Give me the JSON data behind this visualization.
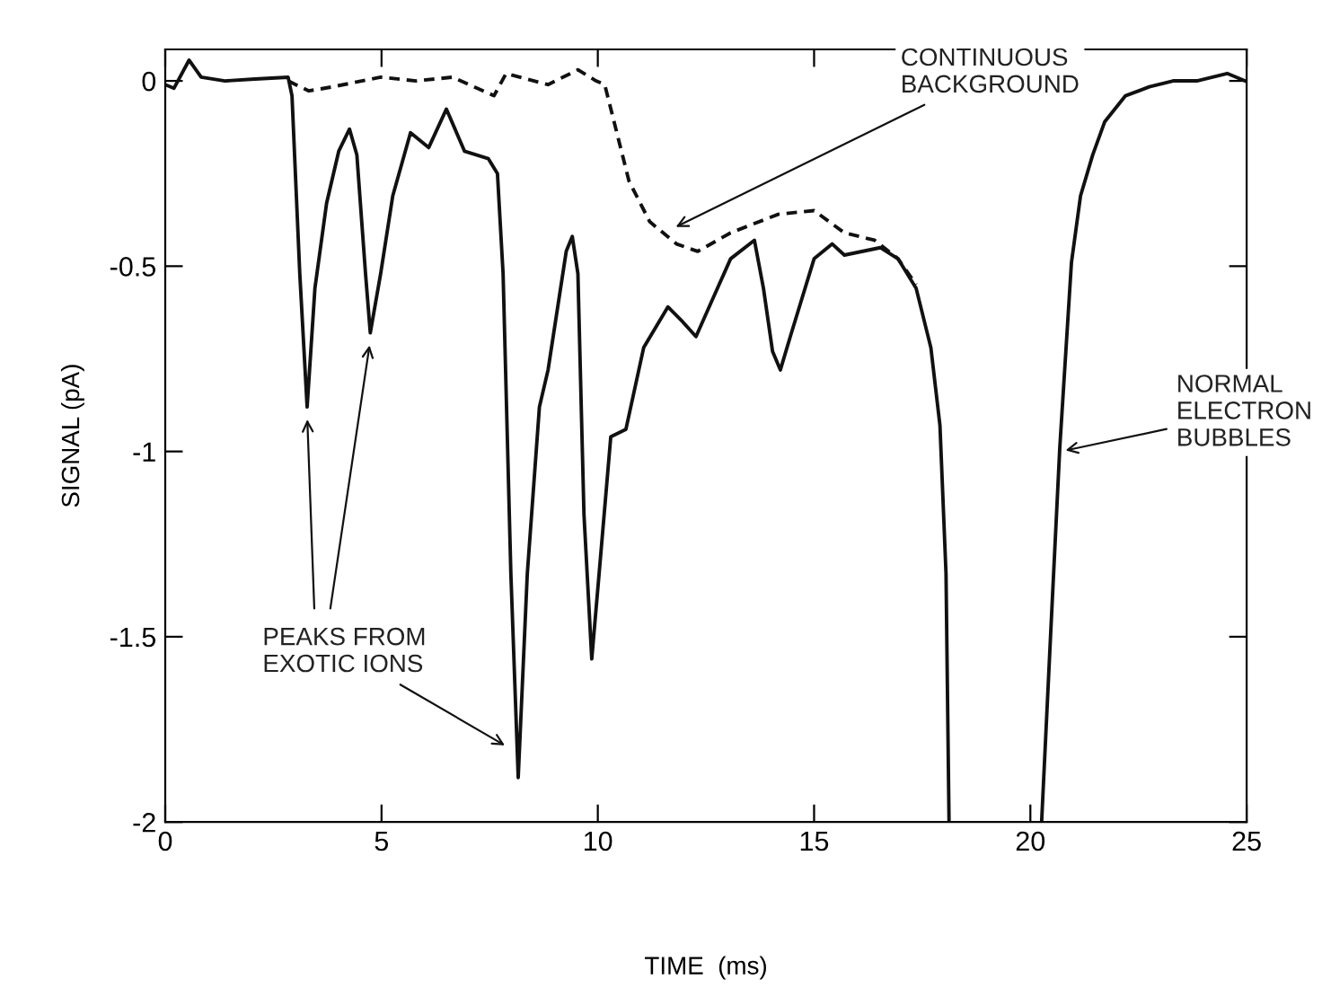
{
  "chart_data": {
    "type": "line",
    "xlabel": "TIME  (ms)",
    "ylabel": "SIGNAL (pA)",
    "xlim": [
      0,
      25
    ],
    "ylim": [
      -2,
      0.085
    ],
    "xticks": [
      0,
      5,
      10,
      15,
      20,
      25
    ],
    "yticks": [
      0,
      -0.5,
      -1,
      -1.5,
      -2
    ],
    "grid": false,
    "legend": false,
    "marker": "none",
    "series": [
      {
        "color": "#111111",
        "line_style": "solid",
        "x": [
          0,
          0.2,
          0.55,
          0.83,
          1.38,
          2.07,
          2.84,
          2.93,
          3.11,
          3.28,
          3.46,
          3.73,
          4.01,
          4.26,
          4.43,
          4.63,
          4.74,
          4.98,
          5.26,
          5.67,
          6.09,
          6.5,
          6.92,
          7.47,
          7.68,
          7.81,
          7.99,
          8.16,
          8.37,
          8.65,
          8.85,
          9.27,
          9.41,
          9.54,
          9.68,
          9.86,
          10.03,
          10.3,
          10.65,
          11.06,
          11.62,
          11.96,
          12.27,
          12.65,
          13.07,
          13.62,
          13.83,
          14.04,
          14.22,
          14.45,
          15.0,
          15.42,
          15.7,
          16.53,
          16.94,
          17.36,
          17.7,
          17.91,
          18.05,
          18.12,
          19.2,
          20.26,
          20.47,
          20.68,
          20.95,
          21.16,
          21.44,
          21.72,
          22.2,
          22.75,
          23.3,
          23.85,
          24.55,
          24.96
        ],
        "values": [
          -0.01,
          -0.02,
          0.056,
          0.01,
          0,
          0.005,
          0.01,
          -0.04,
          -0.52,
          -0.88,
          -0.56,
          -0.33,
          -0.19,
          -0.13,
          -0.2,
          -0.52,
          -0.68,
          -0.52,
          -0.31,
          -0.14,
          -0.18,
          -0.076,
          -0.19,
          -0.21,
          -0.25,
          -0.52,
          -1.33,
          -1.88,
          -1.33,
          -0.88,
          -0.78,
          -0.46,
          -0.42,
          -0.52,
          -1.17,
          -1.56,
          -1.33,
          -0.96,
          -0.94,
          -0.72,
          -0.61,
          -0.65,
          -0.69,
          -0.59,
          -0.48,
          -0.43,
          -0.56,
          -0.73,
          -0.78,
          -0.69,
          -0.48,
          -0.44,
          -0.47,
          -0.45,
          -0.48,
          -0.56,
          -0.72,
          -0.93,
          -1.33,
          -2.0,
          null,
          -2.0,
          -1.49,
          -0.99,
          -0.49,
          -0.31,
          -0.2,
          -0.11,
          -0.04,
          -0.016,
          0,
          0,
          0.02,
          0
        ]
      },
      {
        "color": "#111111",
        "line_style": "dashed",
        "x": [
          2.84,
          3.32,
          3.87,
          4.98,
          5.8,
          6.64,
          7.6,
          7.88,
          8.85,
          9.54,
          9.96,
          10.16,
          10.44,
          10.72,
          11.2,
          11.82,
          12.31,
          13.07,
          14.17,
          15.0,
          15.7,
          16.4,
          16.94,
          17.36
        ],
        "values": [
          0,
          -0.027,
          -0.016,
          0.01,
          0,
          0.01,
          -0.04,
          0.02,
          -0.01,
          0.03,
          0,
          -0.01,
          -0.14,
          -0.27,
          -0.38,
          -0.44,
          -0.46,
          -0.41,
          -0.36,
          -0.35,
          -0.41,
          -0.43,
          -0.48,
          -0.55
        ]
      }
    ],
    "annotations": [
      {
        "text": "PEAKS FROM\nEXOTIC IONS",
        "x": 7.95,
        "y": -1.8
      },
      {
        "text": "CONTINUOUS\nBACKGROUND",
        "x": 11.7,
        "y": -0.4
      },
      {
        "text": "NORMAL\nELECTRON\nBUBBLES",
        "x": 20.7,
        "y": -1.0
      }
    ]
  }
}
